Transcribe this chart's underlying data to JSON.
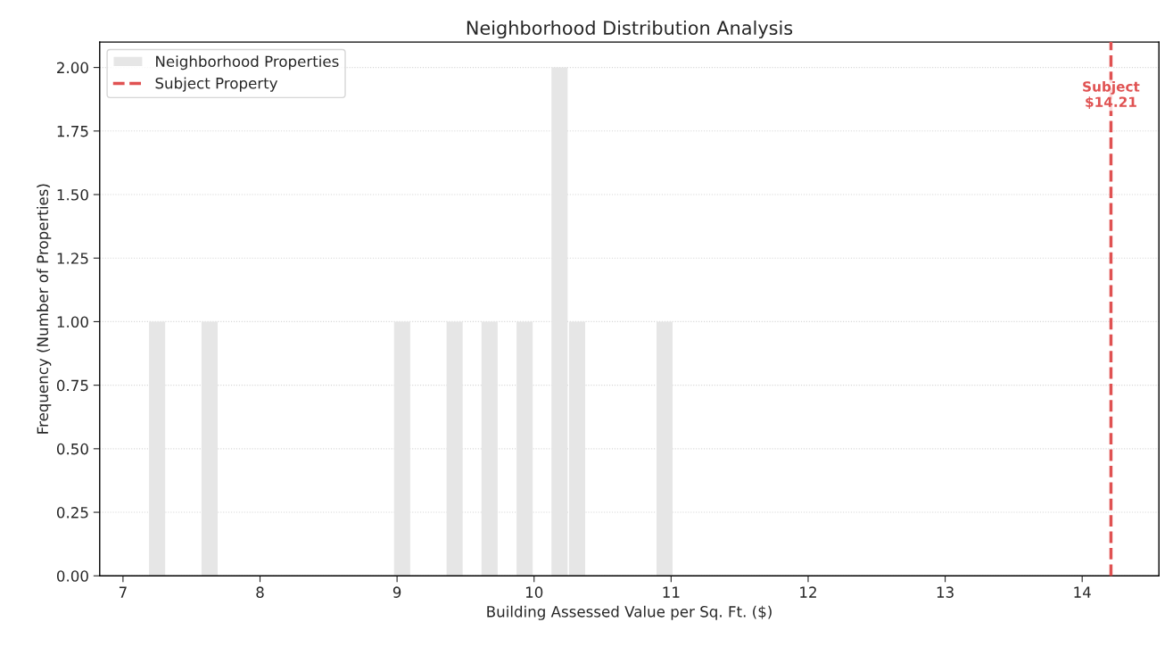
{
  "chart_data": {
    "type": "histogram",
    "title": "Neighborhood Distribution Analysis",
    "xlabel": "Building Assessed Value per Sq. Ft. ($)",
    "ylabel": "Frequency (Number of Properties)",
    "bins": [
      7.185,
      7.313,
      7.44,
      7.568,
      7.696,
      7.824,
      7.951,
      8.079,
      8.207,
      8.334,
      8.462,
      8.59,
      8.717,
      8.845,
      8.973,
      9.101,
      9.228,
      9.356,
      9.484,
      9.611,
      9.739,
      9.867,
      9.995,
      10.122,
      10.25,
      10.378,
      10.505,
      10.633,
      10.761,
      10.888,
      11.016
    ],
    "series": [
      {
        "name": "Neighborhood Properties",
        "color": "#e6e6e6",
        "values": [
          1,
          0,
          0,
          1,
          0,
          0,
          0,
          0,
          0,
          0,
          0,
          0,
          0,
          0,
          1,
          0,
          0,
          1,
          0,
          1,
          0,
          1,
          0,
          2,
          1,
          0,
          0,
          0,
          0,
          1
        ]
      },
      {
        "name": "Subject Property",
        "type": "line",
        "color": "#e05252",
        "line_style": "dashed",
        "x": [
          14.21,
          14.21
        ],
        "values": [
          0,
          2.1
        ]
      }
    ],
    "annotations": [
      {
        "text": "Subject\n$14.21",
        "x": 14.21,
        "y": 1.89
      }
    ],
    "xlim": [
      6.83,
      14.56
    ],
    "xticks": [
      7,
      8,
      9,
      10,
      11,
      12,
      13,
      14
    ],
    "ylim": [
      0,
      2.1
    ],
    "yticks": [
      {
        "value": 0,
        "label": "0.00"
      },
      {
        "value": 0.25,
        "label": "0.25"
      },
      {
        "value": 0.5,
        "label": "0.50"
      },
      {
        "value": 0.75,
        "label": "0.75"
      },
      {
        "value": 1,
        "label": "1.00"
      },
      {
        "value": 1.25,
        "label": "1.25"
      },
      {
        "value": 1.5,
        "label": "1.50"
      },
      {
        "value": 1.75,
        "label": "1.75"
      },
      {
        "value": 2,
        "label": "2.00"
      }
    ],
    "grid": "y",
    "legend": "top left"
  }
}
